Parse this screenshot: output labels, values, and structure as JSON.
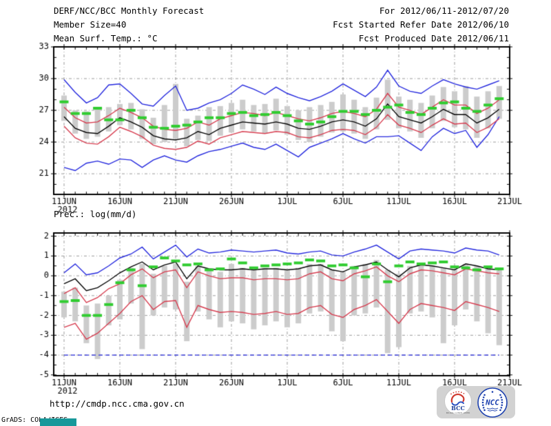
{
  "header": {
    "title": "DERF/NCC/BCC Monthly Forecast",
    "member_size": "Member Size=40",
    "forecast_period": "For 2012/06/11-2012/07/20",
    "refer_date": "Fcst Started Refer Date 2012/06/10",
    "produced_date": "Fcst Produced Date 2012/06/11"
  },
  "footer": {
    "url": "http://cmdp.ncc.cma.gov.cn",
    "grads_credit": "GrADS: COLA/IGES",
    "bcc_logo_text": "BCC",
    "bcc_subtext": "BEIJING CLIMATE CENTER",
    "ncc_logo_text": "NCC"
  },
  "colors": {
    "max_min_line": "#2226dd",
    "stddev_line": "#d63b4e",
    "mean_line": "#000000",
    "observation_dash": "#30cc30",
    "spread_bar": "#cccccc",
    "grid": "#999999",
    "border": "#000000",
    "teal_mark": "#18989a",
    "logo_blue": "#1b3fae",
    "logo_red": "#d03a30"
  },
  "chart_data": [
    {
      "type": "line",
      "title": "Mean Surf. Temp.: °C",
      "x_year": "2012",
      "x_tick_labels": [
        "11JUN",
        "16JUN",
        "21JUN",
        "26JUN",
        "1JUL",
        "6JUL",
        "11JUL",
        "16JUL",
        "21JUL"
      ],
      "x_tick_interval_days": 5,
      "days": 40,
      "y_ticks": [
        33,
        30,
        27,
        24,
        21
      ],
      "ylim": [
        19.05,
        33
      ],
      "grid": true,
      "series": [
        {
          "name": "ensemble-max",
          "color": "#2226dd",
          "values": [
            29.9,
            28.7,
            27.7,
            28.2,
            29.4,
            29.5,
            28.6,
            27.6,
            27.4,
            28.4,
            29.3,
            27.0,
            27.2,
            27.7,
            28.0,
            28.6,
            29.4,
            29.0,
            28.5,
            29.2,
            28.6,
            28.2,
            27.9,
            28.3,
            28.8,
            29.5,
            28.9,
            28.3,
            29.2,
            30.8,
            29.3,
            28.8,
            28.6,
            29.3,
            29.9,
            29.5,
            29.2,
            29.0,
            29.4,
            29.8
          ]
        },
        {
          "name": "ensemble-min",
          "color": "#2226dd",
          "values": [
            21.6,
            21.3,
            22.0,
            22.2,
            21.9,
            22.4,
            22.3,
            21.6,
            22.3,
            22.7,
            22.3,
            22.1,
            22.7,
            23.1,
            23.3,
            23.6,
            23.9,
            23.5,
            23.3,
            23.8,
            23.2,
            22.6,
            23.5,
            23.9,
            24.3,
            24.8,
            24.3,
            23.9,
            24.5,
            24.5,
            24.6,
            23.9,
            23.2,
            24.5,
            25.3,
            24.8,
            25.1,
            23.5,
            24.7,
            26.4
          ]
        },
        {
          "name": "mean-plus-stddev",
          "color": "#d63b4e",
          "values": [
            27.3,
            26.3,
            25.8,
            25.9,
            26.5,
            27.2,
            26.8,
            26.3,
            25.5,
            25.2,
            25.1,
            25.3,
            25.9,
            25.6,
            26.2,
            26.5,
            26.8,
            26.7,
            26.5,
            26.8,
            26.5,
            26.2,
            26.0,
            26.3,
            26.7,
            26.9,
            26.7,
            26.4,
            27.1,
            28.6,
            27.3,
            27.0,
            26.6,
            27.3,
            28.0,
            27.5,
            27.5,
            26.7,
            27.2,
            28.0
          ]
        },
        {
          "name": "mean-minus-stddev",
          "color": "#d63b4e",
          "values": [
            25.5,
            24.4,
            23.9,
            23.8,
            24.5,
            25.4,
            25.0,
            24.5,
            23.7,
            23.4,
            23.3,
            23.5,
            24.1,
            23.8,
            24.4,
            24.7,
            25.0,
            24.9,
            24.8,
            25.0,
            24.9,
            24.5,
            24.4,
            24.7,
            25.1,
            25.2,
            25.1,
            24.7,
            25.4,
            26.6,
            25.6,
            25.3,
            24.9,
            25.6,
            26.2,
            25.7,
            25.8,
            24.9,
            25.4,
            26.2
          ]
        },
        {
          "name": "ensemble-mean",
          "color": "#000000",
          "values": [
            26.4,
            25.3,
            24.9,
            24.8,
            25.5,
            26.3,
            25.9,
            25.4,
            24.6,
            24.3,
            24.2,
            24.4,
            25.0,
            24.7,
            25.3,
            25.6,
            25.9,
            25.8,
            25.7,
            25.9,
            25.7,
            25.3,
            25.2,
            25.5,
            25.9,
            26.1,
            25.9,
            25.5,
            26.2,
            27.6,
            26.4,
            26.1,
            25.8,
            26.4,
            27.1,
            26.6,
            26.6,
            25.8,
            26.3,
            27.1
          ]
        }
      ],
      "bars": {
        "name": "ensemble-spread-bar",
        "color": "#cccccc",
        "hi": [
          28.4,
          27.0,
          26.9,
          27.3,
          27.3,
          27.6,
          27.7,
          27.1,
          26.3,
          27.5,
          29.5,
          26.2,
          26.5,
          27.3,
          27.4,
          27.7,
          28.0,
          27.5,
          27.6,
          28.1,
          27.4,
          27.0,
          27.3,
          27.5,
          27.8,
          28.5,
          28.0,
          27.3,
          28.2,
          29.9,
          28.3,
          28.0,
          27.7,
          28.4,
          29.2,
          28.8,
          29.3,
          28.3,
          28.8,
          29.3
        ],
        "lo": [
          26.0,
          24.8,
          24.3,
          24.5,
          25.0,
          25.6,
          25.2,
          24.3,
          23.8,
          24.0,
          24.3,
          23.6,
          24.2,
          24.1,
          24.6,
          24.9,
          25.2,
          25.0,
          24.8,
          25.1,
          24.7,
          24.2,
          24.0,
          24.5,
          24.9,
          25.0,
          24.8,
          24.3,
          25.2,
          26.1,
          25.3,
          25.0,
          24.4,
          25.3,
          26.0,
          25.4,
          25.2,
          24.4,
          25.3,
          26.2
        ]
      },
      "dashes": {
        "name": "observation-dash",
        "color": "#30cc30",
        "values": [
          27.8,
          26.7,
          26.7,
          27.2,
          26.1,
          26.1,
          27.0,
          26.3,
          25.4,
          25.3,
          25.5,
          25.6,
          25.9,
          26.3,
          26.3,
          26.7,
          26.8,
          26.5,
          26.6,
          26.8,
          26.5,
          26.0,
          25.7,
          25.9,
          26.4,
          26.9,
          26.9,
          26.6,
          27.0,
          27.3,
          27.5,
          26.8,
          26.6,
          27.2,
          27.7,
          27.8,
          27.2,
          26.9,
          27.5,
          28.1
        ]
      }
    },
    {
      "type": "line",
      "title": "Prec.: log(mm/d)",
      "x_year": "2012",
      "x_tick_labels": [
        "11JUN",
        "16JUN",
        "21JUN",
        "26JUN",
        "1JUL",
        "6JUL",
        "11JUL",
        "16JUL",
        "21JUL"
      ],
      "x_tick_interval_days": 5,
      "days": 40,
      "y_ticks": [
        2,
        1,
        0,
        -1,
        -2,
        -3,
        -4,
        -5
      ],
      "ylim": [
        -5.04,
        2.16
      ],
      "grid": true,
      "series": [
        {
          "name": "ensemble-max",
          "color": "#2226dd",
          "values": [
            0.15,
            0.6,
            0.05,
            0.15,
            0.5,
            0.9,
            1.1,
            1.45,
            0.85,
            1.2,
            1.55,
            0.95,
            1.35,
            1.15,
            1.2,
            1.3,
            1.25,
            1.2,
            1.25,
            1.3,
            1.15,
            1.1,
            1.2,
            1.25,
            1.05,
            1.0,
            1.2,
            1.35,
            1.55,
            1.2,
            0.85,
            1.25,
            1.35,
            1.3,
            1.25,
            1.15,
            1.4,
            1.3,
            1.25,
            1.05
          ]
        },
        {
          "name": "ensemble-min",
          "color": "#2226dd",
          "dash": true,
          "constant": -4
        },
        {
          "name": "mean-plus-stddev",
          "color": "#d63b4e",
          "values": [
            -0.9,
            -0.6,
            -1.35,
            -1.1,
            -0.65,
            -0.4,
            0.05,
            0.35,
            -0.1,
            0.2,
            0.3,
            -0.6,
            0.2,
            0.0,
            -0.15,
            -0.1,
            -0.1,
            -0.2,
            -0.15,
            -0.15,
            -0.2,
            -0.15,
            0.1,
            0.2,
            -0.15,
            -0.25,
            0.1,
            0.25,
            0.45,
            0.0,
            -0.3,
            0.1,
            0.3,
            0.25,
            0.15,
            0.05,
            0.35,
            0.25,
            0.15,
            0.1
          ]
        },
        {
          "name": "mean-minus-stddev",
          "color": "#d63b4e",
          "values": [
            -2.6,
            -2.4,
            -3.2,
            -2.9,
            -2.4,
            -1.9,
            -1.3,
            -1.0,
            -1.7,
            -1.3,
            -1.25,
            -2.6,
            -1.5,
            -1.7,
            -1.85,
            -1.8,
            -1.85,
            -1.95,
            -1.9,
            -1.8,
            -1.95,
            -1.9,
            -1.6,
            -1.5,
            -1.95,
            -2.1,
            -1.7,
            -1.5,
            -1.2,
            -1.8,
            -2.4,
            -1.7,
            -1.4,
            -1.5,
            -1.6,
            -1.75,
            -1.3,
            -1.45,
            -1.6,
            -1.8
          ]
        },
        {
          "name": "ensemble-mean",
          "color": "#000000",
          "values": [
            -0.4,
            -0.15,
            -0.75,
            -0.6,
            -0.25,
            0.15,
            0.45,
            0.7,
            0.3,
            0.55,
            0.7,
            -0.15,
            0.5,
            0.35,
            0.3,
            0.3,
            0.35,
            0.3,
            0.35,
            0.35,
            0.3,
            0.35,
            0.5,
            0.55,
            0.3,
            0.2,
            0.45,
            0.55,
            0.7,
            0.3,
            -0.05,
            0.4,
            0.55,
            0.5,
            0.4,
            0.3,
            0.6,
            0.5,
            0.35,
            0.3
          ]
        }
      ],
      "bars": {
        "name": "ensemble-spread-bar",
        "color": "#cccccc",
        "hi": [
          -0.8,
          -0.6,
          -1.5,
          -1.4,
          -1.0,
          -0.2,
          0.4,
          0.6,
          0.1,
          0.5,
          0.6,
          -0.3,
          0.5,
          0.3,
          0.2,
          0.6,
          0.4,
          0.3,
          0.4,
          0.4,
          0.3,
          0.4,
          0.6,
          0.6,
          0.3,
          0.2,
          0.5,
          0.6,
          0.8,
          0.3,
          0.1,
          0.5,
          0.6,
          0.5,
          0.4,
          0.3,
          0.6,
          0.5,
          0.5,
          0.4
        ],
        "lo": [
          -2.1,
          -2.3,
          -3.4,
          -4.2,
          -2.5,
          -2.2,
          -1.4,
          -3.7,
          -2.0,
          -1.6,
          -1.7,
          -3.3,
          -1.8,
          -2.2,
          -2.6,
          -2.3,
          -2.4,
          -2.7,
          -2.5,
          -2.3,
          -2.6,
          -2.4,
          -1.9,
          -1.8,
          -2.8,
          -3.3,
          -2.0,
          -1.9,
          -1.6,
          -3.9,
          -3.6,
          -1.9,
          -1.8,
          -2.1,
          -3.4,
          -2.5,
          -1.7,
          -2.3,
          -2.9,
          -3.5
        ]
      },
      "dashes": {
        "name": "observation-dash",
        "color": "#30cc30",
        "values": [
          -1.3,
          -1.25,
          -2.0,
          -2.0,
          -1.45,
          -0.35,
          0.3,
          -0.5,
          0.45,
          0.9,
          0.75,
          0.55,
          0.6,
          0.3,
          0.35,
          0.85,
          0.65,
          0.4,
          0.5,
          0.55,
          0.6,
          0.65,
          0.8,
          0.75,
          0.5,
          0.55,
          0.4,
          -0.05,
          0.6,
          -0.3,
          0.5,
          0.7,
          0.6,
          0.65,
          0.7,
          0.45,
          0.4,
          0.3,
          0.45,
          0.35
        ]
      }
    }
  ]
}
